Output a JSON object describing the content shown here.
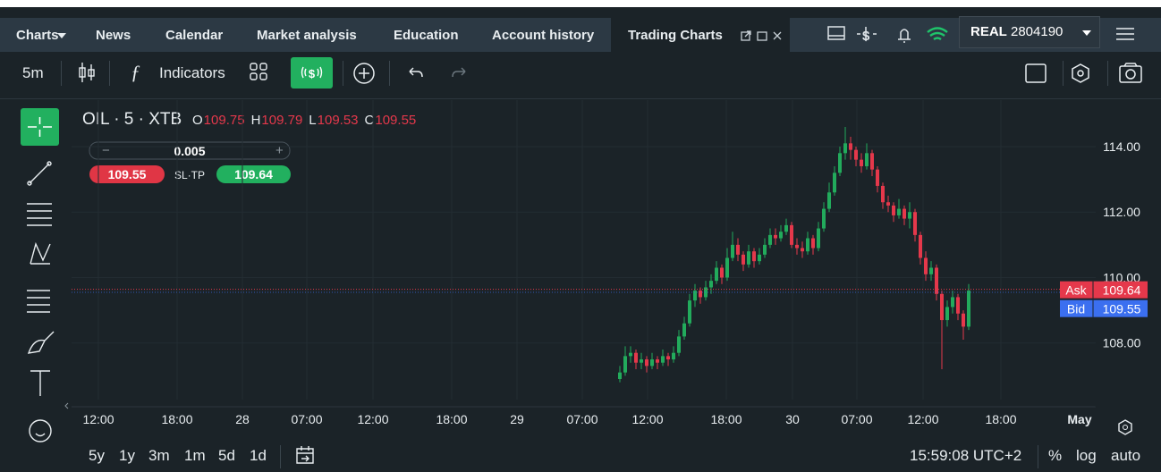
{
  "nav": {
    "tabs": [
      "Charts",
      "News",
      "Calendar",
      "Market analysis",
      "Education",
      "Account history",
      "Trading Charts"
    ],
    "account_type": "REAL",
    "account_number": "2804190"
  },
  "toolbar": {
    "interval": "5m",
    "indicators": "Indicators"
  },
  "instrument": {
    "symbol": "OIL · 5 · XTB",
    "ohlc": [
      {
        "label": "O",
        "value": 109.75
      },
      {
        "label": "H",
        "value": 109.79
      },
      {
        "label": "L",
        "value": 109.53
      },
      {
        "label": "C",
        "value": 109.55
      }
    ],
    "volume": 0.005,
    "sell": 109.55,
    "sl_tp": "SL·TP",
    "buy": 109.64
  },
  "chart_data": {
    "type": "candlestick",
    "up_color": "#22ab5c",
    "down_color": "#e5384b",
    "ylim": [
      106.19,
      115.42
    ],
    "yticks": [
      {
        "value": 108,
        "label": "108.00"
      },
      {
        "value": 110,
        "label": "110.00"
      },
      {
        "value": 112,
        "label": "112.00"
      },
      {
        "value": 114,
        "label": "114.00"
      }
    ],
    "x_labels": [
      "12:00",
      "18:00",
      "28",
      "07:00",
      "12:00",
      "18:00",
      "29",
      "07:00",
      "12:00",
      "18:00",
      "30",
      "07:00",
      "12:00",
      "18:00",
      "May"
    ],
    "candles": [
      [
        106.9,
        107.3,
        106.8,
        107.1
      ],
      [
        107.1,
        107.9,
        107.0,
        107.6
      ],
      [
        107.6,
        107.9,
        107.4,
        107.7
      ],
      [
        107.7,
        107.8,
        107.2,
        107.4
      ],
      [
        107.4,
        107.7,
        107.2,
        107.5
      ],
      [
        107.5,
        107.6,
        107.1,
        107.3
      ],
      [
        107.3,
        107.7,
        107.2,
        107.5
      ],
      [
        107.5,
        107.6,
        107.2,
        107.4
      ],
      [
        107.4,
        107.8,
        107.3,
        107.6
      ],
      [
        107.6,
        107.7,
        107.3,
        107.5
      ],
      [
        107.5,
        107.9,
        107.4,
        107.7
      ],
      [
        107.7,
        108.4,
        107.6,
        108.2
      ],
      [
        108.2,
        108.8,
        108.1,
        108.6
      ],
      [
        108.6,
        109.5,
        108.5,
        109.3
      ],
      [
        109.3,
        109.8,
        109.1,
        109.6
      ],
      [
        109.6,
        109.7,
        109.2,
        109.4
      ],
      [
        109.4,
        109.9,
        109.3,
        109.7
      ],
      [
        109.7,
        110.1,
        109.5,
        109.9
      ],
      [
        109.9,
        110.5,
        109.8,
        110.3
      ],
      [
        110.3,
        110.4,
        109.8,
        110.0
      ],
      [
        110.0,
        110.9,
        109.9,
        110.6
      ],
      [
        110.6,
        111.4,
        110.5,
        111.0
      ],
      [
        111.0,
        111.2,
        110.5,
        110.7
      ],
      [
        110.7,
        110.8,
        110.2,
        110.4
      ],
      [
        110.4,
        111.0,
        110.3,
        110.8
      ],
      [
        110.8,
        110.9,
        110.3,
        110.5
      ],
      [
        110.5,
        110.9,
        110.4,
        110.7
      ],
      [
        110.7,
        111.2,
        110.6,
        111.0
      ],
      [
        111.0,
        111.5,
        110.9,
        111.3
      ],
      [
        111.3,
        111.5,
        111.0,
        111.2
      ],
      [
        111.2,
        111.6,
        111.1,
        111.4
      ],
      [
        111.4,
        111.8,
        111.3,
        111.6
      ],
      [
        111.6,
        111.7,
        110.9,
        111.0
      ],
      [
        111.0,
        111.2,
        110.7,
        110.9
      ],
      [
        110.9,
        111.1,
        110.6,
        110.8
      ],
      [
        110.8,
        111.4,
        110.7,
        111.2
      ],
      [
        111.2,
        111.3,
        110.7,
        110.9
      ],
      [
        110.9,
        111.7,
        110.8,
        111.5
      ],
      [
        111.5,
        112.3,
        111.4,
        112.1
      ],
      [
        112.1,
        112.9,
        112.0,
        112.6
      ],
      [
        112.6,
        113.4,
        112.5,
        113.2
      ],
      [
        113.2,
        114.0,
        113.1,
        113.8
      ],
      [
        113.8,
        114.6,
        113.6,
        114.1
      ],
      [
        114.1,
        114.3,
        113.6,
        113.9
      ],
      [
        113.9,
        114.0,
        113.4,
        113.6
      ],
      [
        113.6,
        113.8,
        113.2,
        113.4
      ],
      [
        113.4,
        114.1,
        113.3,
        113.8
      ],
      [
        113.8,
        113.9,
        113.1,
        113.3
      ],
      [
        113.3,
        113.4,
        112.6,
        112.8
      ],
      [
        112.8,
        112.9,
        112.1,
        112.3
      ],
      [
        112.3,
        112.5,
        112.0,
        112.2
      ],
      [
        112.2,
        112.3,
        111.7,
        111.9
      ],
      [
        111.9,
        112.4,
        111.8,
        112.1
      ],
      [
        112.1,
        112.2,
        111.6,
        111.8
      ],
      [
        111.8,
        112.3,
        111.5,
        112.0
      ],
      [
        112.0,
        112.1,
        111.1,
        111.3
      ],
      [
        111.3,
        111.4,
        110.4,
        110.6
      ],
      [
        110.6,
        110.8,
        109.9,
        110.1
      ],
      [
        110.1,
        110.5,
        109.9,
        110.3
      ],
      [
        110.3,
        110.4,
        109.3,
        109.5
      ],
      [
        109.5,
        109.6,
        107.2,
        108.7
      ],
      [
        108.7,
        109.3,
        108.5,
        109.1
      ],
      [
        109.1,
        109.6,
        108.9,
        109.4
      ],
      [
        109.4,
        109.5,
        108.7,
        108.9
      ],
      [
        108.9,
        109.0,
        108.1,
        108.5
      ],
      [
        108.5,
        109.8,
        108.4,
        109.6
      ]
    ],
    "ask_label": "Ask",
    "ask": 109.64,
    "bid_label": "Bid",
    "bid": 109.55
  },
  "bottom": {
    "ranges": [
      "5y",
      "1y",
      "3m",
      "1m",
      "5d",
      "1d"
    ],
    "clock": "15:59:08 UTC+2",
    "percent": "%",
    "log": "log",
    "auto": "auto"
  }
}
